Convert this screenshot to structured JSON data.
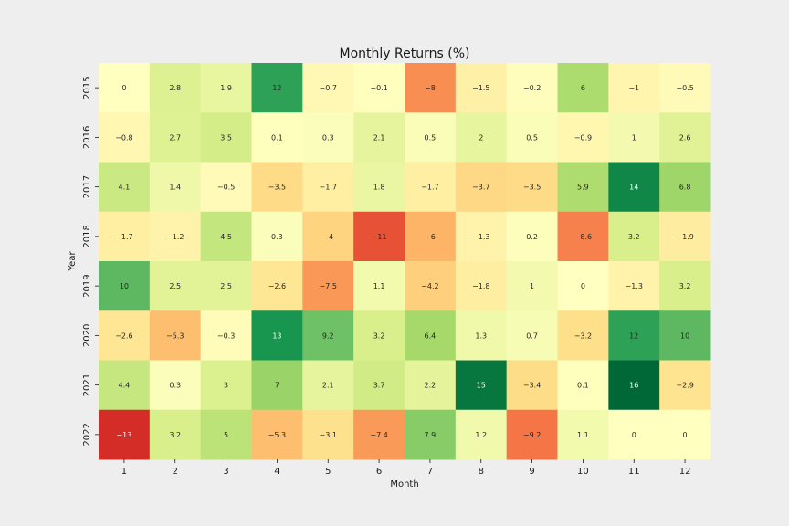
{
  "chart_data": {
    "type": "heatmap",
    "title": "Monthly Returns (%)",
    "xlabel": "Month",
    "ylabel": "Year",
    "x_categories": [
      "1",
      "2",
      "3",
      "4",
      "5",
      "6",
      "7",
      "8",
      "9",
      "10",
      "11",
      "12"
    ],
    "y_categories": [
      "2015",
      "2016",
      "2017",
      "2018",
      "2019",
      "2020",
      "2021",
      "2022"
    ],
    "values": [
      [
        0,
        2.8,
        1.9,
        12,
        -0.7,
        -0.1,
        -8,
        -1.5,
        -0.2,
        6,
        -1,
        -0.5
      ],
      [
        -0.8,
        2.7,
        3.5,
        0.1,
        0.3,
        2.1,
        0.5,
        2,
        0.5,
        -0.9,
        1,
        2.6
      ],
      [
        4.1,
        1.4,
        -0.5,
        -3.5,
        -1.7,
        1.8,
        -1.7,
        -3.7,
        -3.5,
        5.9,
        14,
        6.8
      ],
      [
        -1.7,
        -1.2,
        4.5,
        0.3,
        -4,
        -11,
        -6,
        -1.3,
        0.2,
        -8.6,
        3.2,
        -1.9
      ],
      [
        10,
        2.5,
        2.5,
        -2.6,
        -7.5,
        1.1,
        -4.2,
        -1.8,
        1,
        0,
        -1.3,
        3.2
      ],
      [
        -2.6,
        -5.3,
        -0.3,
        13,
        9.2,
        3.2,
        6.4,
        1.3,
        0.7,
        -3.2,
        12,
        10
      ],
      [
        4.4,
        0.3,
        3,
        7,
        2.1,
        3.7,
        2.2,
        15,
        -3.4,
        0.1,
        16,
        -2.9
      ],
      [
        -13,
        3.2,
        5,
        -5.3,
        -3.1,
        -7.4,
        7.9,
        1.2,
        -9.2,
        1.1,
        0,
        0
      ]
    ],
    "value_labels": [
      [
        "0",
        "2.8",
        "1.9",
        "12",
        "−0.7",
        "−0.1",
        "−8",
        "−1.5",
        "−0.2",
        "6",
        "−1",
        "−0.5"
      ],
      [
        "−0.8",
        "2.7",
        "3.5",
        "0.1",
        "0.3",
        "2.1",
        "0.5",
        "2",
        "0.5",
        "−0.9",
        "1",
        "2.6"
      ],
      [
        "4.1",
        "1.4",
        "−0.5",
        "−3.5",
        "−1.7",
        "1.8",
        "−1.7",
        "−3.7",
        "−3.5",
        "5.9",
        "14",
        "6.8"
      ],
      [
        "−1.7",
        "−1.2",
        "4.5",
        "0.3",
        "−4",
        "−11",
        "−6",
        "−1.3",
        "0.2",
        "−8.6",
        "3.2",
        "−1.9"
      ],
      [
        "10",
        "2.5",
        "2.5",
        "−2.6",
        "−7.5",
        "1.1",
        "−4.2",
        "−1.8",
        "1",
        "0",
        "−1.3",
        "3.2"
      ],
      [
        "−2.6",
        "−5.3",
        "−0.3",
        "13",
        "9.2",
        "3.2",
        "6.4",
        "1.3",
        "0.7",
        "−3.2",
        "12",
        "10"
      ],
      [
        "4.4",
        "0.3",
        "3",
        "7",
        "2.1",
        "3.7",
        "2.2",
        "15",
        "−3.4",
        "0.1",
        "16",
        "−2.9"
      ],
      [
        "−13",
        "3.2",
        "5",
        "−5.3",
        "−3.1",
        "−7.4",
        "7.9",
        "1.2",
        "−9.2",
        "1.1",
        "0",
        "0"
      ]
    ],
    "colormap": "RdYlGn",
    "vmin": -16,
    "vmax": 16,
    "grid": false,
    "legend": "none"
  },
  "colors": {
    "background": "#eeeeee",
    "colormap_stops": [
      "#a50026",
      "#d73027",
      "#f46d43",
      "#fdae61",
      "#fee08b",
      "#ffffbf",
      "#d9ef8b",
      "#a6d96a",
      "#66bd63",
      "#1a9850",
      "#006837"
    ]
  }
}
